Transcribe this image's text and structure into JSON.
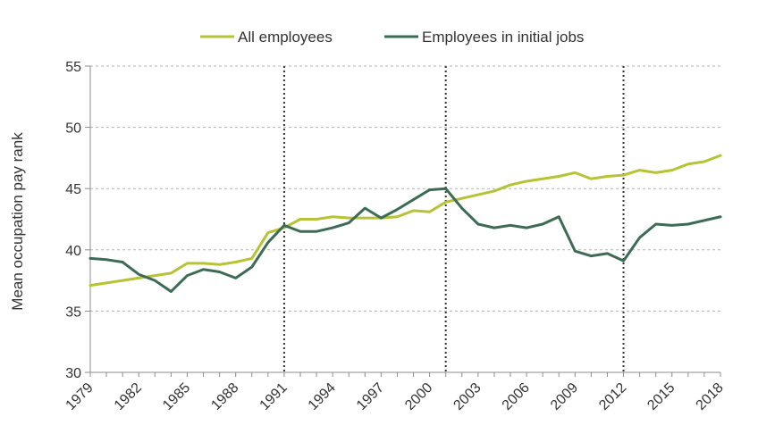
{
  "chart_data": {
    "type": "line",
    "title": "",
    "xlabel": "",
    "ylabel": "Mean occupation pay rank",
    "ylim": [
      30,
      55
    ],
    "yticks": [
      30,
      35,
      40,
      45,
      50,
      55
    ],
    "xlim": [
      1979,
      2018
    ],
    "xtick_labels": [
      "1979",
      "1982",
      "1985",
      "1988",
      "1991",
      "1994",
      "1997",
      "2000",
      "2003",
      "2006",
      "2009",
      "2012",
      "2015",
      "2018"
    ],
    "grid": "horizontal dashed",
    "legend_position": "top",
    "vertical_markers": [
      1991,
      2001,
      2012
    ],
    "x": [
      1979,
      1980,
      1981,
      1982,
      1983,
      1984,
      1985,
      1986,
      1987,
      1988,
      1989,
      1990,
      1991,
      1992,
      1993,
      1994,
      1995,
      1996,
      1997,
      1998,
      1999,
      2000,
      2001,
      2002,
      2003,
      2004,
      2005,
      2006,
      2007,
      2008,
      2009,
      2010,
      2011,
      2012,
      2013,
      2014,
      2015,
      2016,
      2017,
      2018
    ],
    "series": [
      {
        "name": "All employees",
        "color": "#b5c334",
        "values": [
          37.1,
          37.3,
          37.5,
          37.7,
          37.9,
          38.1,
          38.9,
          38.9,
          38.8,
          39.0,
          39.3,
          41.4,
          41.8,
          42.5,
          42.5,
          42.7,
          42.6,
          42.6,
          42.6,
          42.7,
          43.2,
          43.1,
          43.9,
          44.2,
          44.5,
          44.8,
          45.3,
          45.6,
          45.8,
          46.0,
          46.3,
          45.8,
          46.0,
          46.1,
          46.5,
          46.3,
          46.5,
          47.0,
          47.2,
          47.7
        ]
      },
      {
        "name": "Employees in initial jobs",
        "color": "#3d6b56",
        "values": [
          39.3,
          39.2,
          39.0,
          38.0,
          37.5,
          36.6,
          37.9,
          38.4,
          38.2,
          37.7,
          38.6,
          40.6,
          42.0,
          41.5,
          41.5,
          41.8,
          42.2,
          43.4,
          42.6,
          43.3,
          44.1,
          44.9,
          45.0,
          43.4,
          42.1,
          41.8,
          42.0,
          41.8,
          42.1,
          42.7,
          39.9,
          39.5,
          39.7,
          39.1,
          41.0,
          42.1,
          42.0,
          42.1,
          42.4,
          42.7
        ]
      }
    ]
  }
}
